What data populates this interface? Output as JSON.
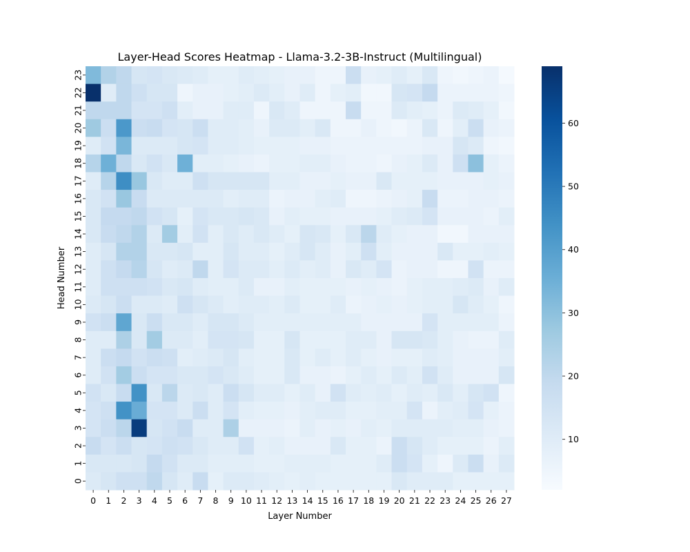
{
  "chart_data": {
    "type": "heatmap",
    "title": "Layer-Head Scores Heatmap - Llama-3.2-3B-Instruct (Multilingual)",
    "xlabel": "Layer Number",
    "ylabel": "Head Number",
    "x_categories": [
      0,
      1,
      2,
      3,
      4,
      5,
      6,
      7,
      8,
      9,
      10,
      11,
      12,
      13,
      14,
      15,
      16,
      17,
      18,
      19,
      20,
      21,
      22,
      23,
      24,
      25,
      26,
      27
    ],
    "y_categories": [
      23,
      22,
      21,
      20,
      19,
      18,
      17,
      16,
      15,
      14,
      13,
      12,
      11,
      10,
      9,
      8,
      7,
      6,
      5,
      4,
      3,
      2,
      1,
      0
    ],
    "values": [
      [
        32,
        23,
        20,
        13,
        14,
        12,
        11,
        10,
        8,
        8,
        10,
        9,
        8,
        7,
        7,
        5,
        5,
        17,
        7,
        8,
        10,
        8,
        12,
        5,
        4,
        5,
        6,
        3
      ],
      [
        69,
        10,
        20,
        16,
        13,
        13,
        5,
        7,
        7,
        8,
        9,
        11,
        9,
        7,
        10,
        5,
        8,
        9,
        4,
        4,
        13,
        14,
        19,
        6,
        6,
        6,
        6,
        5
      ],
      [
        20,
        20,
        20,
        14,
        14,
        16,
        9,
        7,
        7,
        10,
        10,
        5,
        12,
        10,
        5,
        5,
        5,
        18,
        5,
        5,
        11,
        9,
        8,
        6,
        11,
        10,
        8,
        4
      ],
      [
        27,
        17,
        42,
        17,
        18,
        14,
        13,
        17,
        10,
        10,
        9,
        7,
        11,
        11,
        9,
        12,
        5,
        5,
        7,
        5,
        4,
        6,
        12,
        5,
        9,
        17,
        7,
        6
      ],
      [
        10,
        15,
        33,
        11,
        11,
        11,
        13,
        14,
        10,
        10,
        9,
        8,
        8,
        8,
        7,
        7,
        6,
        6,
        6,
        6,
        6,
        6,
        7,
        7,
        13,
        11,
        5,
        4
      ],
      [
        22,
        35,
        20,
        12,
        15,
        12,
        35,
        9,
        9,
        8,
        7,
        6,
        8,
        8,
        9,
        9,
        7,
        6,
        6,
        5,
        7,
        8,
        11,
        7,
        16,
        30,
        8,
        6
      ],
      [
        10,
        22,
        45,
        28,
        12,
        10,
        10,
        16,
        13,
        13,
        13,
        13,
        9,
        9,
        7,
        7,
        8,
        7,
        7,
        12,
        8,
        8,
        8,
        7,
        7,
        7,
        8,
        7
      ],
      [
        12,
        15,
        28,
        18,
        11,
        11,
        11,
        11,
        11,
        9,
        10,
        10,
        6,
        7,
        7,
        9,
        10,
        5,
        5,
        6,
        7,
        8,
        18,
        6,
        6,
        7,
        7,
        6
      ],
      [
        12,
        19,
        19,
        20,
        15,
        13,
        8,
        14,
        12,
        12,
        13,
        12,
        7,
        9,
        8,
        8,
        7,
        7,
        7,
        8,
        10,
        11,
        14,
        7,
        7,
        7,
        6,
        9
      ],
      [
        12,
        18,
        20,
        23,
        11,
        26,
        9,
        15,
        9,
        12,
        10,
        12,
        10,
        8,
        13,
        12,
        8,
        12,
        21,
        10,
        8,
        7,
        7,
        4,
        4,
        7,
        7,
        7
      ],
      [
        10,
        13,
        23,
        23,
        12,
        12,
        13,
        9,
        9,
        13,
        10,
        10,
        8,
        10,
        13,
        10,
        7,
        9,
        16,
        9,
        7,
        7,
        7,
        12,
        8,
        8,
        9,
        8
      ],
      [
        10,
        16,
        19,
        22,
        13,
        10,
        11,
        20,
        9,
        14,
        11,
        11,
        9,
        11,
        9,
        10,
        7,
        12,
        10,
        14,
        6,
        7,
        7,
        5,
        5,
        15,
        6,
        6
      ],
      [
        10,
        16,
        16,
        16,
        15,
        12,
        13,
        10,
        9,
        9,
        11,
        7,
        7,
        9,
        8,
        8,
        8,
        7,
        8,
        7,
        6,
        8,
        9,
        9,
        10,
        11,
        7,
        10
      ],
      [
        11,
        13,
        17,
        11,
        11,
        10,
        16,
        13,
        11,
        9,
        10,
        10,
        9,
        11,
        8,
        8,
        10,
        6,
        7,
        8,
        7,
        8,
        9,
        9,
        13,
        10,
        8,
        5
      ],
      [
        15,
        17,
        38,
        12,
        17,
        12,
        12,
        10,
        13,
        13,
        11,
        9,
        9,
        9,
        9,
        9,
        9,
        9,
        7,
        7,
        7,
        7,
        14,
        9,
        9,
        9,
        9,
        6
      ],
      [
        10,
        10,
        24,
        12,
        26,
        11,
        11,
        9,
        14,
        14,
        13,
        8,
        8,
        13,
        8,
        8,
        8,
        10,
        10,
        7,
        13,
        13,
        12,
        9,
        7,
        6,
        6,
        10
      ],
      [
        10,
        17,
        19,
        15,
        17,
        16,
        9,
        10,
        11,
        13,
        9,
        8,
        8,
        12,
        8,
        10,
        8,
        10,
        8,
        7,
        8,
        8,
        10,
        9,
        7,
        7,
        7,
        9
      ],
      [
        10,
        15,
        26,
        17,
        14,
        14,
        12,
        12,
        14,
        12,
        10,
        8,
        8,
        12,
        7,
        7,
        6,
        8,
        10,
        8,
        11,
        9,
        15,
        10,
        7,
        7,
        7,
        13
      ],
      [
        15,
        12,
        18,
        44,
        12,
        21,
        11,
        12,
        10,
        17,
        13,
        10,
        10,
        8,
        10,
        7,
        15,
        10,
        9,
        10,
        8,
        10,
        9,
        12,
        9,
        13,
        15,
        5
      ],
      [
        14,
        16,
        44,
        36,
        14,
        14,
        11,
        17,
        10,
        14,
        9,
        8,
        8,
        7,
        9,
        10,
        10,
        8,
        8,
        9,
        9,
        14,
        6,
        9,
        10,
        14,
        8,
        6
      ],
      [
        14,
        17,
        21,
        66,
        13,
        15,
        18,
        10,
        10,
        24,
        7,
        7,
        7,
        6,
        9,
        7,
        8,
        7,
        9,
        8,
        10,
        10,
        10,
        10,
        9,
        9,
        7,
        6
      ],
      [
        18,
        14,
        17,
        13,
        14,
        16,
        15,
        12,
        10,
        10,
        15,
        8,
        9,
        7,
        7,
        7,
        12,
        8,
        8,
        6,
        17,
        13,
        10,
        8,
        8,
        8,
        6,
        9
      ],
      [
        12,
        12,
        12,
        13,
        19,
        15,
        11,
        11,
        9,
        9,
        9,
        8,
        8,
        9,
        9,
        9,
        8,
        8,
        8,
        10,
        17,
        14,
        8,
        5,
        11,
        17,
        7,
        11
      ],
      [
        11,
        13,
        16,
        16,
        20,
        13,
        10,
        18,
        8,
        11,
        11,
        10,
        9,
        8,
        9,
        8,
        8,
        8,
        8,
        8,
        12,
        10,
        10,
        10,
        8,
        8,
        8,
        8
      ]
    ],
    "vmin": 2,
    "vmax": 69,
    "colormap": "Blues",
    "colorbar_ticks": [
      10,
      20,
      30,
      40,
      50,
      60
    ],
    "grid": false,
    "legend": "colorbar-right"
  }
}
